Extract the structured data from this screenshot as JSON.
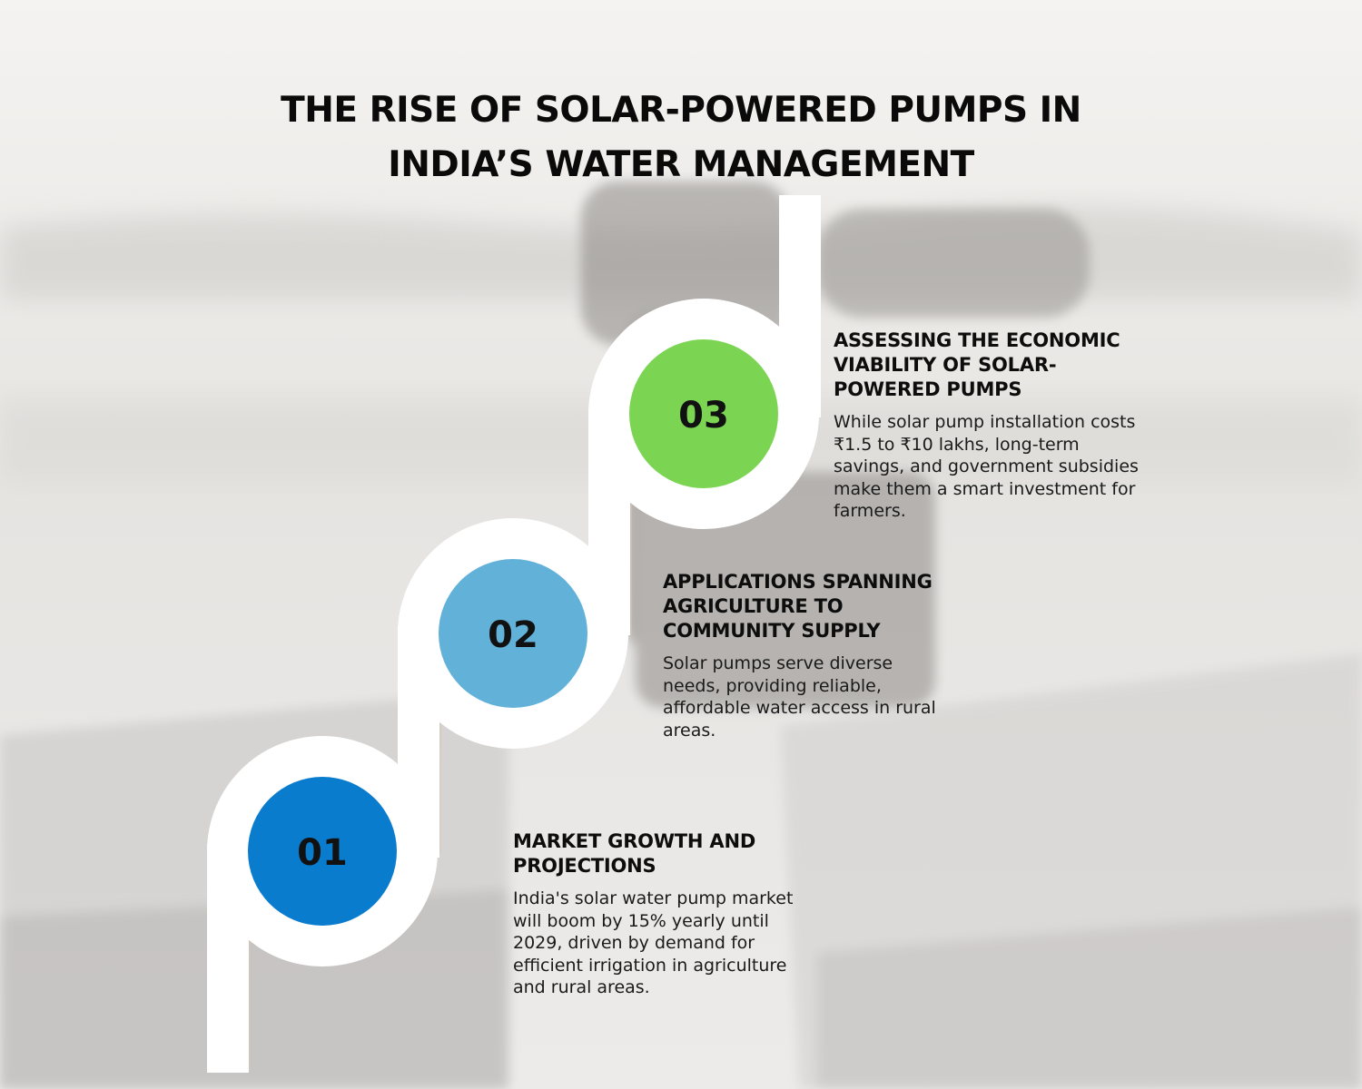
{
  "title": "THE RISE OF SOLAR-POWERED PUMPS IN INDIA’S WATER MANAGEMENT",
  "colors": {
    "step1": "#0a7ccd",
    "step2": "#62b1d9",
    "step3": "#7bd552",
    "track": "#ffffff",
    "background": "#e9e8e6"
  },
  "steps": [
    {
      "number": "01",
      "heading": "MARKET GROWTH AND PROJECTIONS",
      "text": "India's solar water pump market will boom by 15% yearly until 2029, driven by demand for efficient irrigation in agriculture and rural areas."
    },
    {
      "number": "02",
      "heading": "APPLICATIONS SPANNING AGRICULTURE TO COMMUNITY SUPPLY",
      "text": "Solar pumps serve diverse needs, providing reliable, affordable water access in rural areas."
    },
    {
      "number": "03",
      "heading": "ASSESSING THE ECONOMIC VIABILITY OF SOLAR-POWERED PUMPS",
      "text": "While solar pump installation costs ₹1.5 to ₹10 lakhs, long-term savings, and government subsidies make them a smart investment for farmers."
    }
  ]
}
